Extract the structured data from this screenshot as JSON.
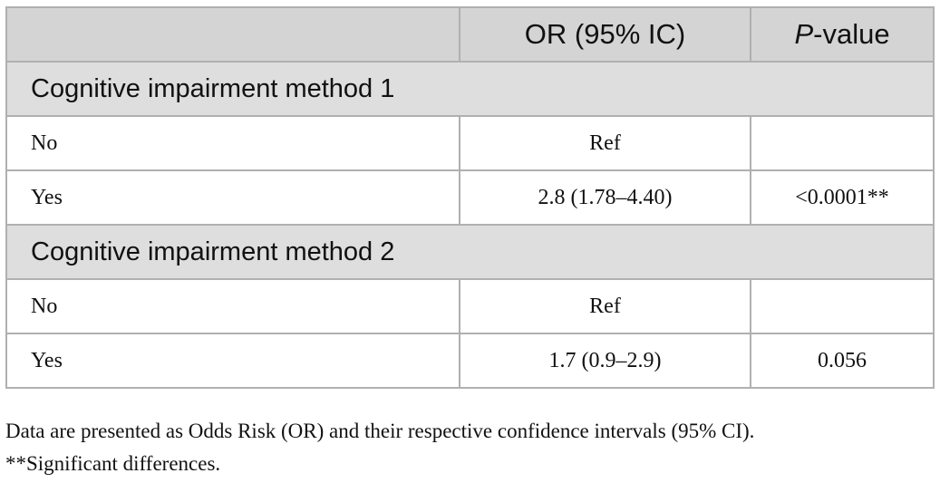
{
  "table": {
    "header": [
      "OR (95% IC)",
      "P-value"
    ],
    "sections": [
      {
        "title": "Cognitive impairment method 1",
        "rows": [
          {
            "label": "No",
            "or": "Ref"
          },
          {
            "label": "Yes",
            "or": "2.8 (1.78–4.40)",
            "p": "<0.0001**"
          }
        ]
      },
      {
        "title": "Cognitive impairment method 2",
        "rows": [
          {
            "label": "No",
            "or": "Ref"
          },
          {
            "label": "Yes",
            "or": "1.7 (0.9–2.9)",
            "p": "0.056"
          }
        ]
      }
    ]
  },
  "footnotes": [
    "Data are presented as Odds Risk (OR) and their respective confidence intervals (95% CI).",
    "**Significant differences."
  ]
}
